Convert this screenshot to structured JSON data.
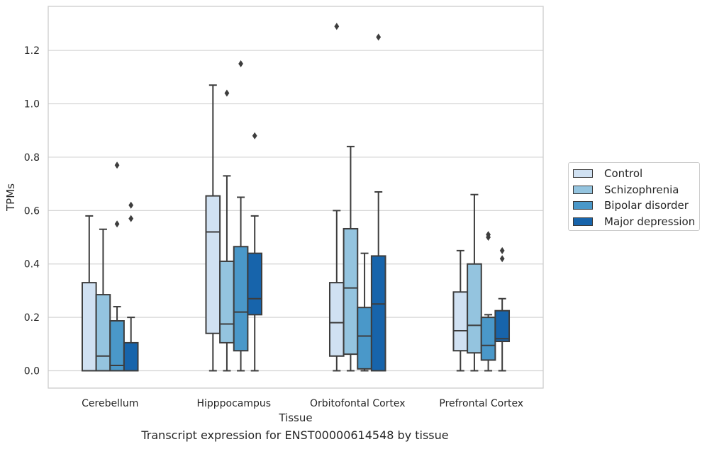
{
  "chart_data": {
    "type": "box",
    "title": "",
    "caption": "Transcript expression for ENST00000614548 by tissue",
    "xlabel": "Tissue",
    "ylabel": "TPMs",
    "ylim": [
      -0.065,
      1.365
    ],
    "yticks": [
      "0.0",
      "0.2",
      "0.4",
      "0.6",
      "0.8",
      "1.0",
      "1.2"
    ],
    "ytick_values": [
      0.0,
      0.2,
      0.4,
      0.6,
      0.8,
      1.0,
      1.2
    ],
    "grid": true,
    "legend_position": "right",
    "categories": [
      "Cerebellum",
      "Hipppocampus",
      "Orbitofontal Cortex",
      "Prefrontal Cortex"
    ],
    "series": [
      {
        "name": "Control",
        "color": "#d0e1f2",
        "boxes": [
          {
            "whislo": 0.0,
            "q1": 0.0,
            "med": 0.0,
            "q3": 0.33,
            "whishi": 0.58,
            "fliers": []
          },
          {
            "whislo": 0.0,
            "q1": 0.14,
            "med": 0.52,
            "q3": 0.655,
            "whishi": 1.07,
            "fliers": []
          },
          {
            "whislo": 0.0,
            "q1": 0.055,
            "med": 0.18,
            "q3": 0.33,
            "whishi": 0.6,
            "fliers": [
              1.29
            ]
          },
          {
            "whislo": 0.0,
            "q1": 0.075,
            "med": 0.15,
            "q3": 0.295,
            "whishi": 0.45,
            "fliers": []
          }
        ]
      },
      {
        "name": "Schizophrenia",
        "color": "#94c4df",
        "boxes": [
          {
            "whislo": 0.0,
            "q1": 0.0,
            "med": 0.055,
            "q3": 0.285,
            "whishi": 0.53,
            "fliers": []
          },
          {
            "whislo": 0.0,
            "q1": 0.105,
            "med": 0.175,
            "q3": 0.41,
            "whishi": 0.73,
            "fliers": [
              1.04
            ]
          },
          {
            "whislo": 0.0,
            "q1": 0.062,
            "med": 0.31,
            "q3": 0.532,
            "whishi": 0.84,
            "fliers": []
          },
          {
            "whislo": 0.0,
            "q1": 0.067,
            "med": 0.17,
            "q3": 0.4,
            "whishi": 0.66,
            "fliers": []
          }
        ]
      },
      {
        "name": "Bipolar disorder",
        "color": "#4a98c9",
        "boxes": [
          {
            "whislo": 0.0,
            "q1": 0.0,
            "med": 0.02,
            "q3": 0.187,
            "whishi": 0.24,
            "fliers": [
              0.55,
              0.77
            ]
          },
          {
            "whislo": 0.0,
            "q1": 0.075,
            "med": 0.22,
            "q3": 0.465,
            "whishi": 0.65,
            "fliers": [
              1.15
            ]
          },
          {
            "whislo": 0.0,
            "q1": 0.007,
            "med": 0.13,
            "q3": 0.237,
            "whishi": 0.44,
            "fliers": []
          },
          {
            "whislo": 0.0,
            "q1": 0.04,
            "med": 0.095,
            "q3": 0.2,
            "whishi": 0.21,
            "fliers": [
              0.5,
              0.51
            ]
          }
        ]
      },
      {
        "name": "Major depression",
        "color": "#1764ab",
        "boxes": [
          {
            "whislo": 0.0,
            "q1": 0.0,
            "med": 0.0,
            "q3": 0.105,
            "whishi": 0.2,
            "fliers": [
              0.57,
              0.62
            ]
          },
          {
            "whislo": 0.0,
            "q1": 0.21,
            "med": 0.27,
            "q3": 0.44,
            "whishi": 0.58,
            "fliers": [
              0.88
            ]
          },
          {
            "whislo": 0.0,
            "q1": 0.0,
            "med": 0.25,
            "q3": 0.43,
            "whishi": 0.67,
            "fliers": [
              1.25
            ]
          },
          {
            "whislo": 0.0,
            "q1": 0.11,
            "med": 0.12,
            "q3": 0.225,
            "whishi": 0.27,
            "fliers": [
              0.42,
              0.45
            ]
          }
        ]
      }
    ]
  }
}
